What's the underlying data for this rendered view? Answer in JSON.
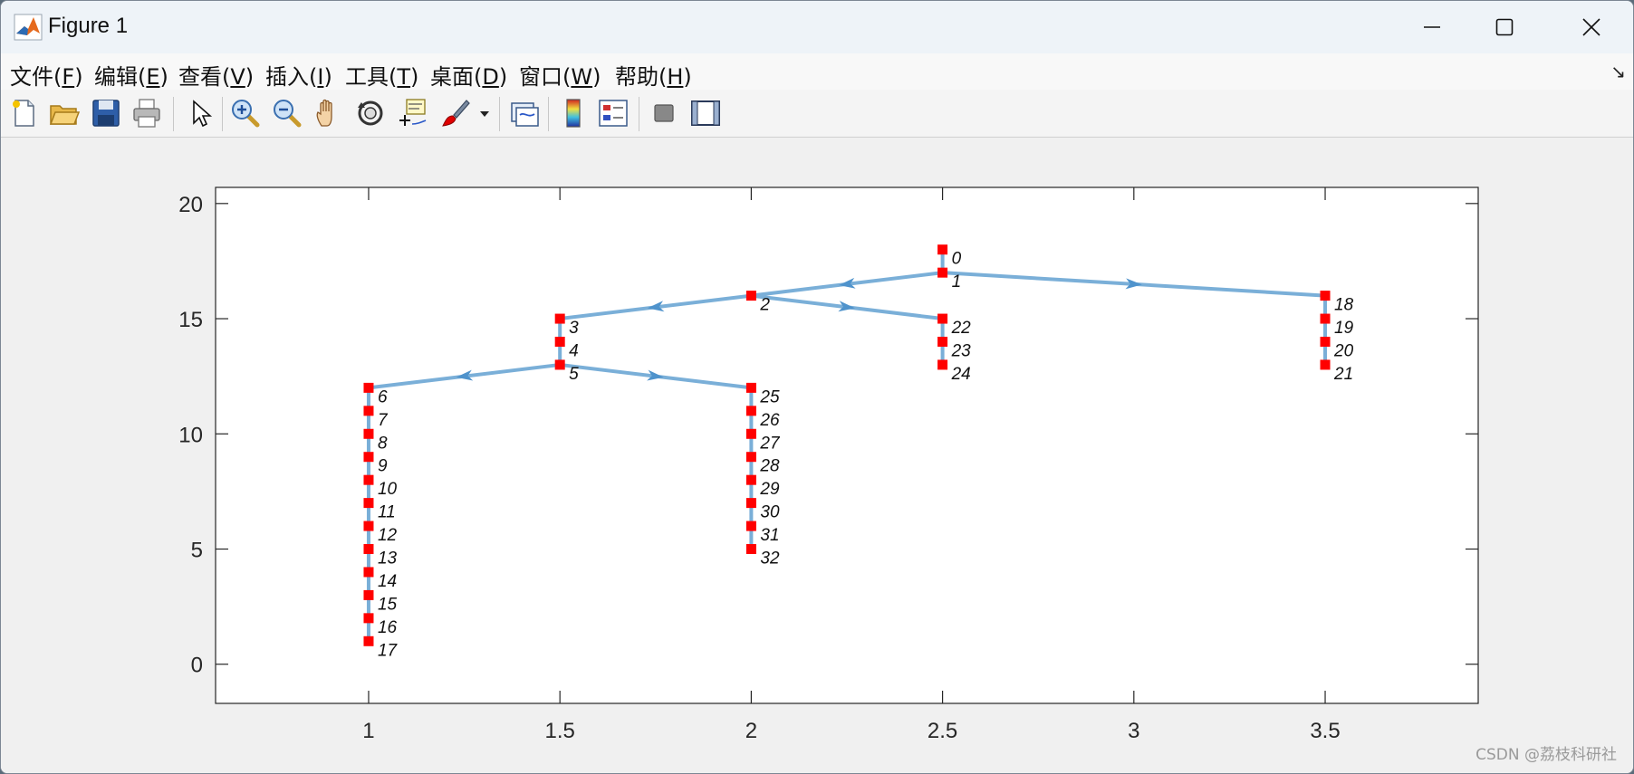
{
  "window": {
    "title": "Figure 1"
  },
  "menu": {
    "items": [
      {
        "label": "文件(",
        "mnemonic": "F",
        "suffix": ")"
      },
      {
        "label": "编辑(",
        "mnemonic": "E",
        "suffix": ")"
      },
      {
        "label": "查看(",
        "mnemonic": "V",
        "suffix": ")"
      },
      {
        "label": "插入(",
        "mnemonic": "I",
        "suffix": ")"
      },
      {
        "label": "工具(",
        "mnemonic": "T",
        "suffix": ")"
      },
      {
        "label": "桌面(",
        "mnemonic": "D",
        "suffix": ")"
      },
      {
        "label": "窗口(",
        "mnemonic": "W",
        "suffix": ")"
      },
      {
        "label": "帮助(",
        "mnemonic": "H",
        "suffix": ")"
      }
    ]
  },
  "toolbar": {
    "icons": [
      "new-figure-icon",
      "open-file-icon",
      "save-icon",
      "print-icon",
      "select-arrow-icon",
      "zoom-in-icon",
      "zoom-out-icon",
      "pan-hand-icon",
      "rotate-3d-icon",
      "data-cursor-icon",
      "brush-icon",
      "link-plot-icon",
      "colorbar-icon",
      "legend-icon",
      "hide-plot-tools-icon",
      "show-plot-tools-icon"
    ]
  },
  "watermark": "CSDN @荔枝科研社",
  "colors": {
    "edge": "#7aafd8",
    "node": "#ff0000",
    "axis": "#262626"
  },
  "chart_data": {
    "type": "scatter",
    "xlim": [
      0.6,
      3.9
    ],
    "ylim": [
      -1.7,
      20.7
    ],
    "xticks": [
      1,
      1.5,
      2,
      2.5,
      3,
      3.5
    ],
    "xtick_labels": [
      "1",
      "1.5",
      "2",
      "2.5",
      "3",
      "3.5"
    ],
    "yticks": [
      0,
      5,
      10,
      15,
      20
    ],
    "ytick_labels": [
      "0",
      "5",
      "10",
      "15",
      "20"
    ],
    "grid": false,
    "nodes": [
      {
        "id": "0",
        "x": 2.5,
        "y": 18
      },
      {
        "id": "1",
        "x": 2.5,
        "y": 17
      },
      {
        "id": "2",
        "x": 2,
        "y": 16
      },
      {
        "id": "3",
        "x": 1.5,
        "y": 15
      },
      {
        "id": "4",
        "x": 1.5,
        "y": 14
      },
      {
        "id": "5",
        "x": 1.5,
        "y": 13
      },
      {
        "id": "6",
        "x": 1,
        "y": 12
      },
      {
        "id": "7",
        "x": 1,
        "y": 11
      },
      {
        "id": "8",
        "x": 1,
        "y": 10
      },
      {
        "id": "9",
        "x": 1,
        "y": 9
      },
      {
        "id": "10",
        "x": 1,
        "y": 8
      },
      {
        "id": "11",
        "x": 1,
        "y": 7
      },
      {
        "id": "12",
        "x": 1,
        "y": 6
      },
      {
        "id": "13",
        "x": 1,
        "y": 5
      },
      {
        "id": "14",
        "x": 1,
        "y": 4
      },
      {
        "id": "15",
        "x": 1,
        "y": 3
      },
      {
        "id": "16",
        "x": 1,
        "y": 2
      },
      {
        "id": "17",
        "x": 1,
        "y": 1
      },
      {
        "id": "18",
        "x": 3.5,
        "y": 16
      },
      {
        "id": "19",
        "x": 3.5,
        "y": 15
      },
      {
        "id": "20",
        "x": 3.5,
        "y": 14
      },
      {
        "id": "21",
        "x": 3.5,
        "y": 13
      },
      {
        "id": "22",
        "x": 2.5,
        "y": 15
      },
      {
        "id": "23",
        "x": 2.5,
        "y": 14
      },
      {
        "id": "24",
        "x": 2.5,
        "y": 13
      },
      {
        "id": "25",
        "x": 2,
        "y": 12
      },
      {
        "id": "26",
        "x": 2,
        "y": 11
      },
      {
        "id": "27",
        "x": 2,
        "y": 10
      },
      {
        "id": "28",
        "x": 2,
        "y": 9
      },
      {
        "id": "29",
        "x": 2,
        "y": 8
      },
      {
        "id": "30",
        "x": 2,
        "y": 7
      },
      {
        "id": "31",
        "x": 2,
        "y": 6
      },
      {
        "id": "32",
        "x": 2,
        "y": 5
      }
    ],
    "edges": [
      [
        "0",
        "1"
      ],
      [
        "1",
        "2"
      ],
      [
        "2",
        "3"
      ],
      [
        "3",
        "4"
      ],
      [
        "4",
        "5"
      ],
      [
        "5",
        "6"
      ],
      [
        "6",
        "7"
      ],
      [
        "7",
        "8"
      ],
      [
        "8",
        "9"
      ],
      [
        "9",
        "10"
      ],
      [
        "10",
        "11"
      ],
      [
        "11",
        "12"
      ],
      [
        "12",
        "13"
      ],
      [
        "13",
        "14"
      ],
      [
        "14",
        "15"
      ],
      [
        "15",
        "16"
      ],
      [
        "16",
        "17"
      ],
      [
        "1",
        "18"
      ],
      [
        "18",
        "19"
      ],
      [
        "19",
        "20"
      ],
      [
        "20",
        "21"
      ],
      [
        "2",
        "22"
      ],
      [
        "22",
        "23"
      ],
      [
        "23",
        "24"
      ],
      [
        "5",
        "25"
      ],
      [
        "25",
        "26"
      ],
      [
        "26",
        "27"
      ],
      [
        "27",
        "28"
      ],
      [
        "28",
        "29"
      ],
      [
        "29",
        "30"
      ],
      [
        "30",
        "31"
      ],
      [
        "31",
        "32"
      ]
    ]
  }
}
